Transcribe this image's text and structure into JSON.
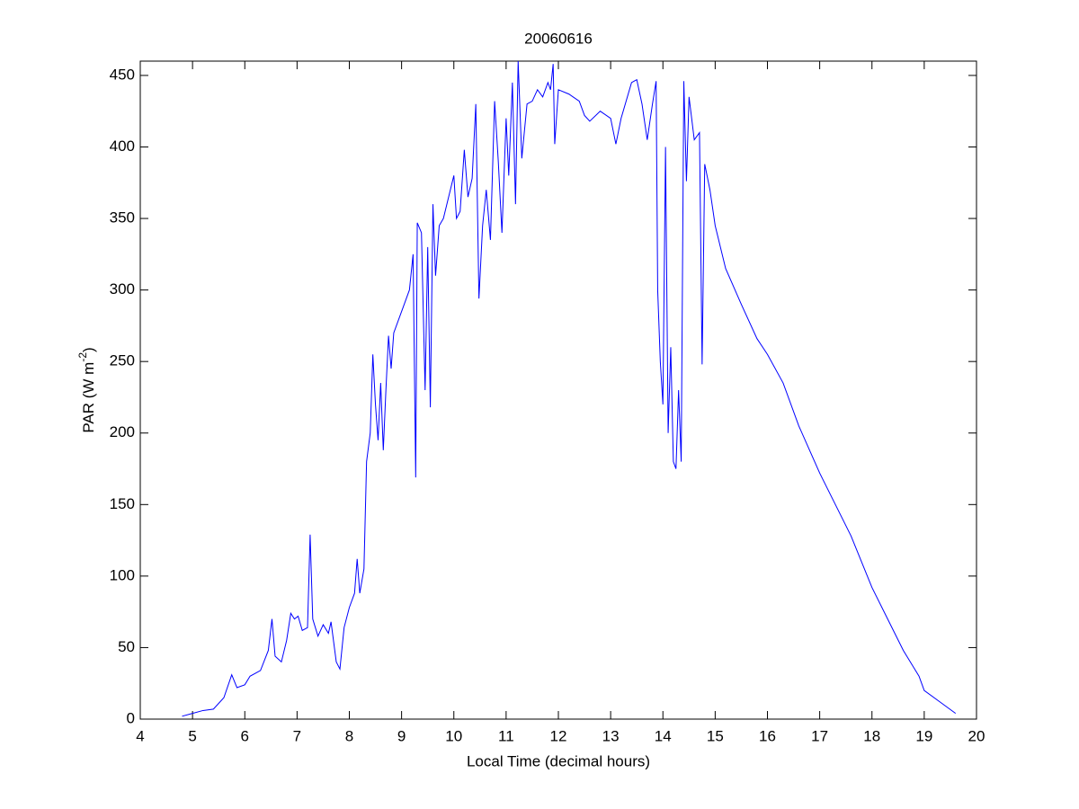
{
  "chart_data": {
    "type": "line",
    "title": "20060616",
    "xlabel": "Local Time (decimal hours)",
    "ylabel": [
      "PAR (W m",
      "-2",
      ")"
    ],
    "xlim": [
      4,
      20
    ],
    "xticks": [
      4,
      5,
      6,
      7,
      8,
      9,
      10,
      11,
      12,
      13,
      14,
      15,
      16,
      17,
      18,
      19,
      20
    ],
    "ylim": [
      0,
      460
    ],
    "yticks": [
      0,
      50,
      100,
      150,
      200,
      250,
      300,
      350,
      400,
      450
    ],
    "color": "#0000ff",
    "x": [
      4.8,
      5.0,
      5.2,
      5.4,
      5.6,
      5.75,
      5.85,
      6.0,
      6.1,
      6.3,
      6.45,
      6.52,
      6.58,
      6.7,
      6.8,
      6.88,
      6.95,
      7.02,
      7.1,
      7.2,
      7.25,
      7.3,
      7.4,
      7.5,
      7.6,
      7.65,
      7.75,
      7.82,
      7.9,
      8.0,
      8.1,
      8.15,
      8.2,
      8.28,
      8.33,
      8.4,
      8.45,
      8.5,
      8.55,
      8.6,
      8.65,
      8.7,
      8.75,
      8.8,
      8.85,
      8.95,
      9.05,
      9.15,
      9.22,
      9.27,
      9.3,
      9.38,
      9.45,
      9.5,
      9.55,
      9.6,
      9.65,
      9.72,
      9.8,
      9.9,
      10.0,
      10.05,
      10.12,
      10.2,
      10.27,
      10.35,
      10.42,
      10.48,
      10.55,
      10.62,
      10.7,
      10.78,
      10.85,
      10.92,
      11.0,
      11.05,
      11.12,
      11.18,
      11.23,
      11.3,
      11.4,
      11.5,
      11.6,
      11.7,
      11.8,
      11.85,
      11.9,
      11.93,
      12.0,
      12.2,
      12.4,
      12.5,
      12.6,
      12.8,
      13.0,
      13.1,
      13.2,
      13.4,
      13.5,
      13.6,
      13.7,
      13.8,
      13.87,
      13.9,
      13.95,
      14.0,
      14.05,
      14.1,
      14.15,
      14.2,
      14.25,
      14.3,
      14.35,
      14.4,
      14.45,
      14.5,
      14.6,
      14.7,
      14.75,
      14.8,
      14.9,
      15.0,
      15.2,
      15.5,
      15.8,
      16.0,
      16.3,
      16.6,
      17.0,
      17.3,
      17.6,
      18.0,
      18.3,
      18.6,
      18.9,
      19.0,
      19.3,
      19.6
    ],
    "values": [
      2,
      4,
      6,
      7,
      15,
      31,
      22,
      24,
      30,
      34,
      48,
      70,
      44,
      40,
      55,
      74,
      70,
      72,
      62,
      64,
      129,
      70,
      58,
      66,
      60,
      68,
      40,
      35,
      64,
      78,
      88,
      112,
      88,
      105,
      180,
      200,
      255,
      220,
      195,
      235,
      188,
      230,
      268,
      245,
      270,
      280,
      290,
      300,
      325,
      169,
      347,
      340,
      230,
      330,
      218,
      360,
      310,
      345,
      350,
      365,
      380,
      350,
      355,
      398,
      365,
      378,
      430,
      294,
      345,
      370,
      335,
      432,
      390,
      340,
      420,
      380,
      445,
      360,
      460,
      392,
      430,
      432,
      440,
      435,
      445,
      440,
      458,
      402,
      440,
      437,
      432,
      422,
      418,
      425,
      420,
      402,
      420,
      445,
      447,
      430,
      405,
      430,
      446,
      300,
      250,
      220,
      400,
      200,
      260,
      180,
      175,
      230,
      180,
      446,
      376,
      435,
      405,
      410,
      248,
      388,
      370,
      345,
      315,
      290,
      266,
      255,
      235,
      205,
      172,
      150,
      128,
      92,
      70,
      48,
      30,
      20,
      12,
      4
    ]
  }
}
